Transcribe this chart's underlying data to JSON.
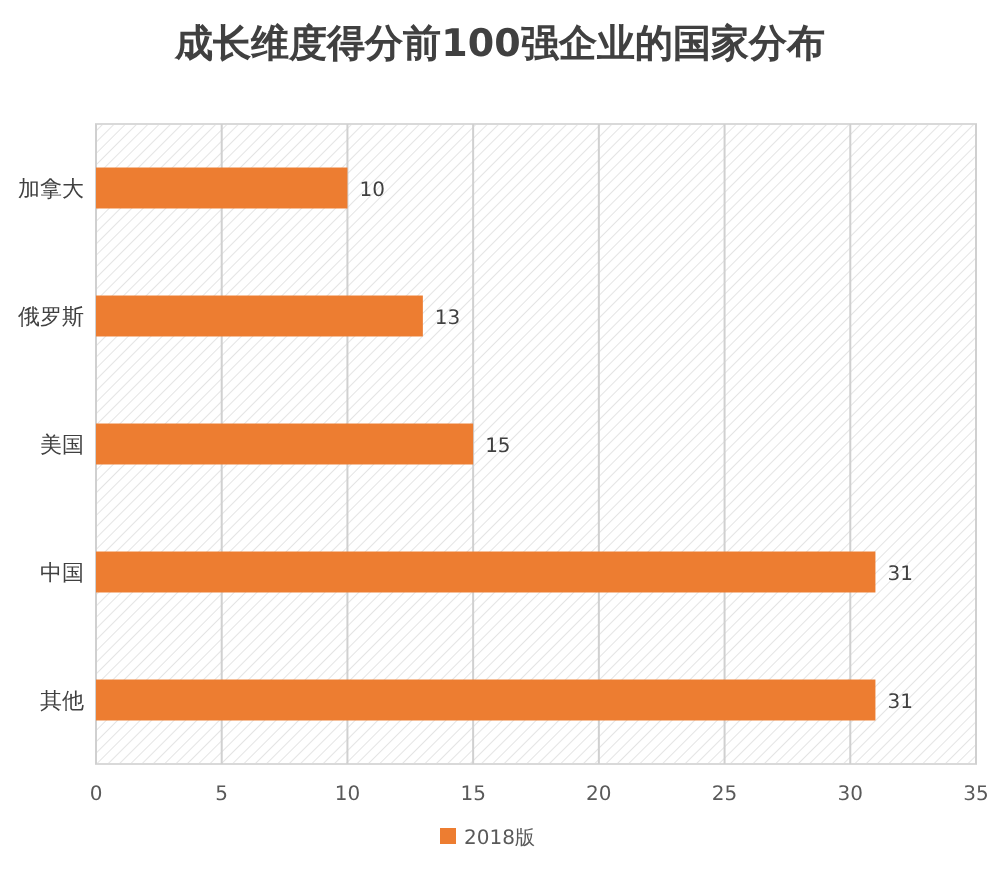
{
  "chart_data": {
    "type": "bar",
    "orientation": "horizontal",
    "title": "成长维度得分前100强企业的国家分布",
    "categories": [
      "加拿大",
      "俄罗斯",
      "美国",
      "中国",
      "其他"
    ],
    "series": [
      {
        "name": "2018版",
        "color": "#ed7d31",
        "values": [
          10,
          13,
          15,
          31,
          31
        ]
      }
    ],
    "xlim": [
      0,
      35
    ],
    "xticks": [
      0,
      5,
      10,
      15,
      20,
      25,
      30,
      35
    ],
    "grid": "x",
    "legend": "bottom",
    "data_labels": true
  }
}
